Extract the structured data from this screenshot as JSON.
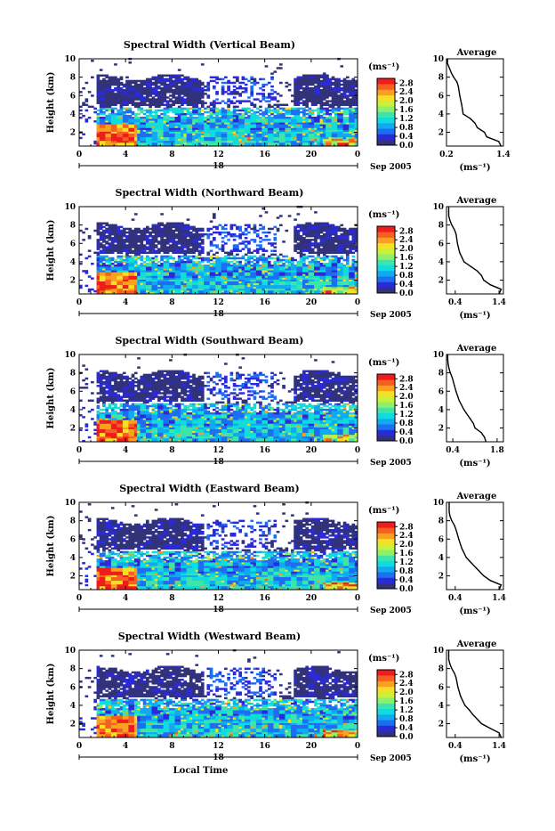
{
  "figure": {
    "xlabel": "Local Time",
    "colors": {
      "colormap": [
        "#32327a",
        "#2a2ad6",
        "#1e6ef2",
        "#10aaf0",
        "#10dcdc",
        "#40e4a8",
        "#8ef06a",
        "#c8f03c",
        "#f4e024",
        "#f8a020",
        "#f46020",
        "#ee1c1c"
      ],
      "line": "#000000",
      "background": "#ffffff"
    }
  },
  "chart_data": [
    {
      "type": "heatmap",
      "title": "Spectral Width (Vertical Beam)",
      "ylabel": "Height (km)",
      "xlabel": "",
      "x_ticks": [
        "0",
        "4",
        "8",
        "12",
        "16",
        "20",
        "0"
      ],
      "y_ticks": [
        "2",
        "4",
        "6",
        "8",
        "10"
      ],
      "xlim": [
        0,
        24
      ],
      "ylim": [
        0.5,
        10
      ],
      "date_day": "18",
      "date_label": "Sep 2005",
      "colorbar": {
        "unit": "(ms⁻¹)",
        "ticks": [
          "0.0",
          "0.4",
          "0.8",
          "1.2",
          "1.6",
          "2.0",
          "2.4",
          "2.8"
        ],
        "range": [
          0,
          2.8
        ]
      },
      "average": {
        "title": "Average",
        "xlabel": "(ms⁻¹)",
        "x_ticks": [
          "0.2",
          "1.4"
        ],
        "xlim": [
          0.2,
          1.4
        ],
        "y_ticks": [
          "2",
          "4",
          "6",
          "8",
          "10"
        ],
        "ylim": [
          0.5,
          10
        ],
        "heights": [
          0.5,
          1,
          1.5,
          2,
          2.5,
          3,
          3.5,
          4,
          5,
          6,
          7,
          7.5,
          8,
          8.5,
          9,
          9.5,
          10
        ],
        "values": [
          1.35,
          1.3,
          1.05,
          1.0,
          0.85,
          0.8,
          0.7,
          0.55,
          0.52,
          0.48,
          0.45,
          0.42,
          0.35,
          0.3,
          0.26,
          0.22,
          0.22
        ]
      }
    },
    {
      "type": "heatmap",
      "title": "Spectral Width (Northward Beam)",
      "ylabel": "Height (km)",
      "xlabel": "",
      "x_ticks": [
        "0",
        "4",
        "8",
        "12",
        "16",
        "20",
        "0"
      ],
      "y_ticks": [
        "2",
        "4",
        "6",
        "8",
        "10"
      ],
      "xlim": [
        0,
        24
      ],
      "ylim": [
        0.5,
        10
      ],
      "date_day": "18",
      "date_label": "Sep 2005",
      "colorbar": {
        "unit": "(ms⁻¹)",
        "ticks": [
          "0.0",
          "0.4",
          "0.8",
          "1.2",
          "1.6",
          "2.0",
          "2.4",
          "2.8"
        ],
        "range": [
          0,
          2.8
        ]
      },
      "average": {
        "title": "Average",
        "xlabel": "(ms⁻¹)",
        "x_ticks": [
          "0.4",
          "1.4"
        ],
        "xlim": [
          0.2,
          1.5
        ],
        "y_ticks": [
          "2",
          "4",
          "6",
          "8",
          "10"
        ],
        "ylim": [
          0.5,
          10
        ],
        "heights": [
          0.5,
          1,
          1.5,
          2,
          2.5,
          3,
          3.5,
          4,
          5,
          6,
          7,
          7.5,
          8,
          8.5,
          9,
          9.5,
          10
        ],
        "values": [
          1.4,
          1.45,
          1.2,
          1.05,
          1.0,
          0.9,
          0.75,
          0.6,
          0.5,
          0.45,
          0.42,
          0.38,
          0.32,
          0.28,
          0.25,
          0.25,
          0.25
        ]
      }
    },
    {
      "type": "heatmap",
      "title": "Spectral Width (Southward Beam)",
      "ylabel": "Height (km)",
      "xlabel": "",
      "x_ticks": [
        "0",
        "4",
        "8",
        "12",
        "16",
        "20",
        "0"
      ],
      "y_ticks": [
        "2",
        "4",
        "6",
        "8",
        "10"
      ],
      "xlim": [
        0,
        24
      ],
      "ylim": [
        0.5,
        10
      ],
      "date_day": "18",
      "date_label": "Sep 2005",
      "colorbar": {
        "unit": "(ms⁻¹)",
        "ticks": [
          "0.0",
          "0.4",
          "0.8",
          "1.2",
          "1.6",
          "2.0",
          "2.4",
          "2.8"
        ],
        "range": [
          0,
          2.8
        ]
      },
      "average": {
        "title": "Average",
        "xlabel": "(ms⁻¹)",
        "x_ticks": [
          "0.4",
          "1.8"
        ],
        "xlim": [
          0.2,
          2.0
        ],
        "y_ticks": [
          "2",
          "4",
          "6",
          "8",
          "10"
        ],
        "ylim": [
          0.5,
          10
        ],
        "heights": [
          0.5,
          1,
          1.5,
          2,
          2.5,
          3,
          3.5,
          4,
          5,
          6,
          7,
          7.5,
          8,
          8.5,
          9,
          9.5,
          10
        ],
        "values": [
          1.45,
          1.4,
          1.3,
          1.1,
          1.05,
          0.95,
          0.85,
          0.75,
          0.6,
          0.5,
          0.42,
          0.38,
          0.32,
          0.28,
          0.25,
          0.24,
          0.24
        ]
      }
    },
    {
      "type": "heatmap",
      "title": "Spectral Width (Eastward Beam)",
      "ylabel": "Height (km)",
      "xlabel": "",
      "x_ticks": [
        "0",
        "4",
        "8",
        "12",
        "16",
        "20",
        "0"
      ],
      "y_ticks": [
        "2",
        "4",
        "6",
        "8",
        "10"
      ],
      "xlim": [
        0,
        24
      ],
      "ylim": [
        0.5,
        10
      ],
      "date_day": "18",
      "date_label": "Sep 2005",
      "colorbar": {
        "unit": "(ms⁻¹)",
        "ticks": [
          "0.0",
          "0.4",
          "0.8",
          "1.2",
          "1.6",
          "2.0",
          "2.4",
          "2.8"
        ],
        "range": [
          0,
          2.8
        ]
      },
      "average": {
        "title": "Average",
        "xlabel": "(ms⁻¹)",
        "x_ticks": [
          "0.4",
          "1.4"
        ],
        "xlim": [
          0.2,
          1.5
        ],
        "y_ticks": [
          "2",
          "4",
          "6",
          "8",
          "10"
        ],
        "ylim": [
          0.5,
          10
        ],
        "heights": [
          0.5,
          1,
          1.5,
          2,
          2.5,
          3,
          3.5,
          4,
          5,
          6,
          7,
          7.5,
          8,
          8.5,
          9,
          9.5,
          10
        ],
        "values": [
          1.4,
          1.45,
          1.2,
          1.05,
          0.95,
          0.85,
          0.75,
          0.65,
          0.55,
          0.48,
          0.42,
          0.38,
          0.32,
          0.28,
          0.26,
          0.26,
          0.26
        ]
      }
    },
    {
      "type": "heatmap",
      "title": "Spectral Width (Westward Beam)",
      "ylabel": "Height (km)",
      "xlabel": "Local Time",
      "x_ticks": [
        "0",
        "4",
        "8",
        "12",
        "16",
        "20",
        "0"
      ],
      "y_ticks": [
        "2",
        "4",
        "6",
        "8",
        "10"
      ],
      "xlim": [
        0,
        24
      ],
      "ylim": [
        0.5,
        10
      ],
      "date_day": "18",
      "date_label": "Sep 2005",
      "colorbar": {
        "unit": "(ms⁻¹)",
        "ticks": [
          "0.0",
          "0.4",
          "0.8",
          "1.2",
          "1.6",
          "2.0",
          "2.4",
          "2.8"
        ],
        "range": [
          0,
          2.8
        ]
      },
      "average": {
        "title": "Average",
        "xlabel": "(ms⁻¹)",
        "x_ticks": [
          "0.4",
          "1.4"
        ],
        "xlim": [
          0.2,
          1.5
        ],
        "y_ticks": [
          "2",
          "4",
          "6",
          "8",
          "10"
        ],
        "ylim": [
          0.5,
          10
        ],
        "heights": [
          0.5,
          1,
          1.5,
          2,
          2.5,
          3,
          3.5,
          4,
          5,
          6,
          7,
          7.5,
          8,
          8.5,
          9,
          9.5,
          10
        ],
        "values": [
          1.45,
          1.4,
          1.2,
          1.0,
          0.9,
          0.8,
          0.72,
          0.62,
          0.52,
          0.46,
          0.42,
          0.38,
          0.32,
          0.28,
          0.25,
          0.25,
          0.25
        ]
      }
    }
  ]
}
